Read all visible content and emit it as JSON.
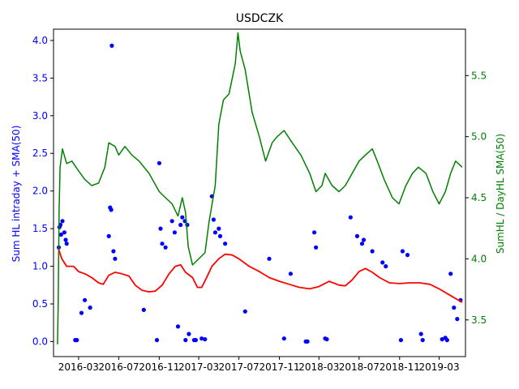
{
  "chart_data": {
    "type": "scatter",
    "title": "USDCZK",
    "ylabel_left": "Sum HL intraday + SMA(50)",
    "ylabel_right": "SumHL / DayHL SMA(50)",
    "grid": false,
    "colors": {
      "left_axis": "#0000ff",
      "right_axis": "#008000",
      "scatter": "#0000ff",
      "sma_line": "#ff0000",
      "ratio_line": "#008000"
    },
    "x_axis": {
      "type": "date",
      "range": [
        "2015-12-16",
        "2019-05-20"
      ],
      "ticks": [
        "2016-03",
        "2016-07",
        "2016-11",
        "2017-03",
        "2017-07",
        "2017-11",
        "2018-03",
        "2018-07",
        "2018-11",
        "2019-03"
      ],
      "tick_dates": [
        "2016-03-01",
        "2016-07-01",
        "2016-11-01",
        "2017-03-01",
        "2017-07-01",
        "2017-11-01",
        "2018-03-01",
        "2018-07-01",
        "2018-11-01",
        "2019-03-01"
      ]
    },
    "y_left": {
      "range": [
        -0.2,
        4.15
      ],
      "ticks": [
        "0.0",
        "0.5",
        "1.0",
        "1.5",
        "2.0",
        "2.5",
        "3.0",
        "3.5",
        "4.0"
      ],
      "tick_values": [
        0,
        0.5,
        1,
        1.5,
        2,
        2.5,
        3,
        3.5,
        4
      ]
    },
    "y_right": {
      "range": [
        3.2,
        5.88
      ],
      "ticks": [
        "3.5",
        "4.0",
        "4.5",
        "5.0",
        "5.5"
      ],
      "tick_values": [
        3.5,
        4.0,
        4.5,
        5.0,
        5.5
      ]
    },
    "series": [
      {
        "kind": "scatter",
        "axis": "left",
        "color": "#0000ff",
        "points": [
          [
            "2016-01-01",
            1.25
          ],
          [
            "2016-01-03",
            1.52
          ],
          [
            "2016-01-06",
            1.55
          ],
          [
            "2016-01-08",
            1.42
          ],
          [
            "2016-01-12",
            1.6
          ],
          [
            "2016-01-18",
            1.45
          ],
          [
            "2016-01-22",
            1.35
          ],
          [
            "2016-01-25",
            1.3
          ],
          [
            "2016-02-20",
            0.02
          ],
          [
            "2016-02-25",
            0.02
          ],
          [
            "2016-03-10",
            0.38
          ],
          [
            "2016-03-20",
            0.55
          ],
          [
            "2016-04-05",
            0.45
          ],
          [
            "2016-06-10",
            3.93
          ],
          [
            "2016-06-05",
            1.78
          ],
          [
            "2016-06-08",
            1.75
          ],
          [
            "2016-06-01",
            1.4
          ],
          [
            "2016-06-15",
            1.2
          ],
          [
            "2016-06-20",
            1.1
          ],
          [
            "2016-09-15",
            0.42
          ],
          [
            "2016-10-25",
            0.02
          ],
          [
            "2016-11-01",
            2.37
          ],
          [
            "2016-11-05",
            1.5
          ],
          [
            "2016-11-10",
            1.3
          ],
          [
            "2016-11-20",
            1.25
          ],
          [
            "2016-12-10",
            1.6
          ],
          [
            "2016-12-18",
            1.45
          ],
          [
            "2017-01-05",
            1.55
          ],
          [
            "2017-01-10",
            1.65
          ],
          [
            "2017-01-18",
            1.6
          ],
          [
            "2017-01-25",
            1.55
          ],
          [
            "2016-12-28",
            0.2
          ],
          [
            "2017-01-20",
            0.02
          ],
          [
            "2017-01-30",
            0.1
          ],
          [
            "2017-02-15",
            0.02
          ],
          [
            "2017-02-20",
            0.02
          ],
          [
            "2017-03-10",
            0.04
          ],
          [
            "2017-03-20",
            0.03
          ],
          [
            "2017-04-10",
            1.93
          ],
          [
            "2017-04-15",
            1.62
          ],
          [
            "2017-04-20",
            1.45
          ],
          [
            "2017-05-01",
            1.5
          ],
          [
            "2017-05-05",
            1.4
          ],
          [
            "2017-05-20",
            1.3
          ],
          [
            "2017-07-20",
            0.4
          ],
          [
            "2017-10-01",
            1.1
          ],
          [
            "2017-11-15",
            0.04
          ],
          [
            "2017-12-05",
            0.9
          ],
          [
            "2018-01-20",
            0.0
          ],
          [
            "2018-01-25",
            0.0
          ],
          [
            "2018-02-15",
            1.45
          ],
          [
            "2018-02-20",
            1.25
          ],
          [
            "2018-03-20",
            0.04
          ],
          [
            "2018-03-25",
            0.03
          ],
          [
            "2018-06-05",
            1.65
          ],
          [
            "2018-06-25",
            1.4
          ],
          [
            "2018-07-10",
            1.3
          ],
          [
            "2018-07-15",
            1.35
          ],
          [
            "2018-08-10",
            1.2
          ],
          [
            "2018-09-10",
            1.05
          ],
          [
            "2018-09-20",
            1.0
          ],
          [
            "2018-11-05",
            0.02
          ],
          [
            "2018-11-10",
            1.2
          ],
          [
            "2018-11-25",
            1.15
          ],
          [
            "2019-01-05",
            0.1
          ],
          [
            "2019-01-10",
            0.02
          ],
          [
            "2019-03-10",
            0.03
          ],
          [
            "2019-03-20",
            0.05
          ],
          [
            "2019-03-25",
            0.02
          ],
          [
            "2019-04-05",
            0.9
          ],
          [
            "2019-04-15",
            0.45
          ],
          [
            "2019-04-25",
            0.3
          ],
          [
            "2019-05-05",
            0.55
          ]
        ]
      },
      {
        "kind": "line",
        "axis": "left",
        "color": "#ff0000",
        "points": [
          [
            "2016-01-01",
            1.22
          ],
          [
            "2016-01-10",
            1.1
          ],
          [
            "2016-01-25",
            1.0
          ],
          [
            "2016-02-15",
            1.0
          ],
          [
            "2016-03-01",
            0.93
          ],
          [
            "2016-03-20",
            0.9
          ],
          [
            "2016-04-10",
            0.85
          ],
          [
            "2016-05-01",
            0.78
          ],
          [
            "2016-05-15",
            0.76
          ],
          [
            "2016-06-01",
            0.88
          ],
          [
            "2016-06-20",
            0.92
          ],
          [
            "2016-07-10",
            0.9
          ],
          [
            "2016-08-01",
            0.87
          ],
          [
            "2016-08-20",
            0.75
          ],
          [
            "2016-09-10",
            0.68
          ],
          [
            "2016-10-01",
            0.66
          ],
          [
            "2016-10-20",
            0.67
          ],
          [
            "2016-11-10",
            0.75
          ],
          [
            "2016-12-01",
            0.9
          ],
          [
            "2016-12-20",
            1.0
          ],
          [
            "2017-01-05",
            1.02
          ],
          [
            "2017-01-20",
            0.92
          ],
          [
            "2017-02-10",
            0.85
          ],
          [
            "2017-02-25",
            0.72
          ],
          [
            "2017-03-10",
            0.72
          ],
          [
            "2017-03-25",
            0.85
          ],
          [
            "2017-04-10",
            1.0
          ],
          [
            "2017-05-01",
            1.1
          ],
          [
            "2017-05-20",
            1.16
          ],
          [
            "2017-06-10",
            1.15
          ],
          [
            "2017-07-01",
            1.1
          ],
          [
            "2017-08-01",
            1.0
          ],
          [
            "2017-09-01",
            0.93
          ],
          [
            "2017-10-01",
            0.85
          ],
          [
            "2017-11-01",
            0.8
          ],
          [
            "2017-12-01",
            0.76
          ],
          [
            "2018-01-01",
            0.72
          ],
          [
            "2018-02-01",
            0.7
          ],
          [
            "2018-03-01",
            0.73
          ],
          [
            "2018-04-01",
            0.8
          ],
          [
            "2018-05-01",
            0.75
          ],
          [
            "2018-05-20",
            0.74
          ],
          [
            "2018-06-10",
            0.82
          ],
          [
            "2018-07-01",
            0.93
          ],
          [
            "2018-07-20",
            0.97
          ],
          [
            "2018-08-10",
            0.92
          ],
          [
            "2018-09-01",
            0.85
          ],
          [
            "2018-10-01",
            0.78
          ],
          [
            "2018-11-01",
            0.77
          ],
          [
            "2018-12-01",
            0.78
          ],
          [
            "2019-01-01",
            0.78
          ],
          [
            "2019-02-01",
            0.76
          ],
          [
            "2019-03-01",
            0.7
          ],
          [
            "2019-04-01",
            0.62
          ],
          [
            "2019-05-10",
            0.52
          ]
        ]
      },
      {
        "kind": "line",
        "axis": "right",
        "color": "#008000",
        "points": [
          [
            "2015-12-28",
            3.3
          ],
          [
            "2015-12-30",
            3.6
          ],
          [
            "2016-01-02",
            4.4
          ],
          [
            "2016-01-05",
            4.75
          ],
          [
            "2016-01-12",
            4.9
          ],
          [
            "2016-01-25",
            4.78
          ],
          [
            "2016-02-10",
            4.8
          ],
          [
            "2016-03-01",
            4.72
          ],
          [
            "2016-03-20",
            4.65
          ],
          [
            "2016-04-10",
            4.6
          ],
          [
            "2016-05-01",
            4.62
          ],
          [
            "2016-05-20",
            4.75
          ],
          [
            "2016-06-01",
            4.95
          ],
          [
            "2016-06-20",
            4.92
          ],
          [
            "2016-07-01",
            4.85
          ],
          [
            "2016-07-20",
            4.92
          ],
          [
            "2016-08-10",
            4.85
          ],
          [
            "2016-09-01",
            4.8
          ],
          [
            "2016-10-01",
            4.7
          ],
          [
            "2016-11-01",
            4.55
          ],
          [
            "2016-11-20",
            4.5
          ],
          [
            "2016-12-10",
            4.45
          ],
          [
            "2016-12-28",
            4.35
          ],
          [
            "2017-01-10",
            4.5
          ],
          [
            "2017-01-20",
            4.38
          ],
          [
            "2017-01-28",
            4.1
          ],
          [
            "2017-02-10",
            3.95
          ],
          [
            "2017-03-01",
            4.0
          ],
          [
            "2017-03-20",
            4.05
          ],
          [
            "2017-04-01",
            4.3
          ],
          [
            "2017-04-20",
            4.6
          ],
          [
            "2017-05-01",
            5.1
          ],
          [
            "2017-05-15",
            5.3
          ],
          [
            "2017-06-01",
            5.35
          ],
          [
            "2017-06-20",
            5.6
          ],
          [
            "2017-06-28",
            5.85
          ],
          [
            "2017-07-05",
            5.7
          ],
          [
            "2017-07-20",
            5.55
          ],
          [
            "2017-08-10",
            5.2
          ],
          [
            "2017-09-01",
            5.0
          ],
          [
            "2017-09-20",
            4.8
          ],
          [
            "2017-10-10",
            4.95
          ],
          [
            "2017-10-25",
            5.0
          ],
          [
            "2017-11-15",
            5.05
          ],
          [
            "2017-12-10",
            4.95
          ],
          [
            "2018-01-05",
            4.85
          ],
          [
            "2018-02-01",
            4.7
          ],
          [
            "2018-02-20",
            4.55
          ],
          [
            "2018-03-10",
            4.6
          ],
          [
            "2018-03-20",
            4.7
          ],
          [
            "2018-04-10",
            4.6
          ],
          [
            "2018-05-01",
            4.55
          ],
          [
            "2018-05-20",
            4.6
          ],
          [
            "2018-06-10",
            4.7
          ],
          [
            "2018-07-01",
            4.8
          ],
          [
            "2018-07-20",
            4.85
          ],
          [
            "2018-08-10",
            4.9
          ],
          [
            "2018-08-25",
            4.8
          ],
          [
            "2018-09-15",
            4.65
          ],
          [
            "2018-10-10",
            4.5
          ],
          [
            "2018-10-30",
            4.45
          ],
          [
            "2018-11-20",
            4.6
          ],
          [
            "2018-12-10",
            4.7
          ],
          [
            "2018-12-28",
            4.75
          ],
          [
            "2019-01-20",
            4.7
          ],
          [
            "2019-02-10",
            4.55
          ],
          [
            "2019-03-01",
            4.45
          ],
          [
            "2019-03-20",
            4.55
          ],
          [
            "2019-04-05",
            4.7
          ],
          [
            "2019-04-20",
            4.8
          ],
          [
            "2019-05-10",
            4.75
          ]
        ]
      }
    ]
  }
}
